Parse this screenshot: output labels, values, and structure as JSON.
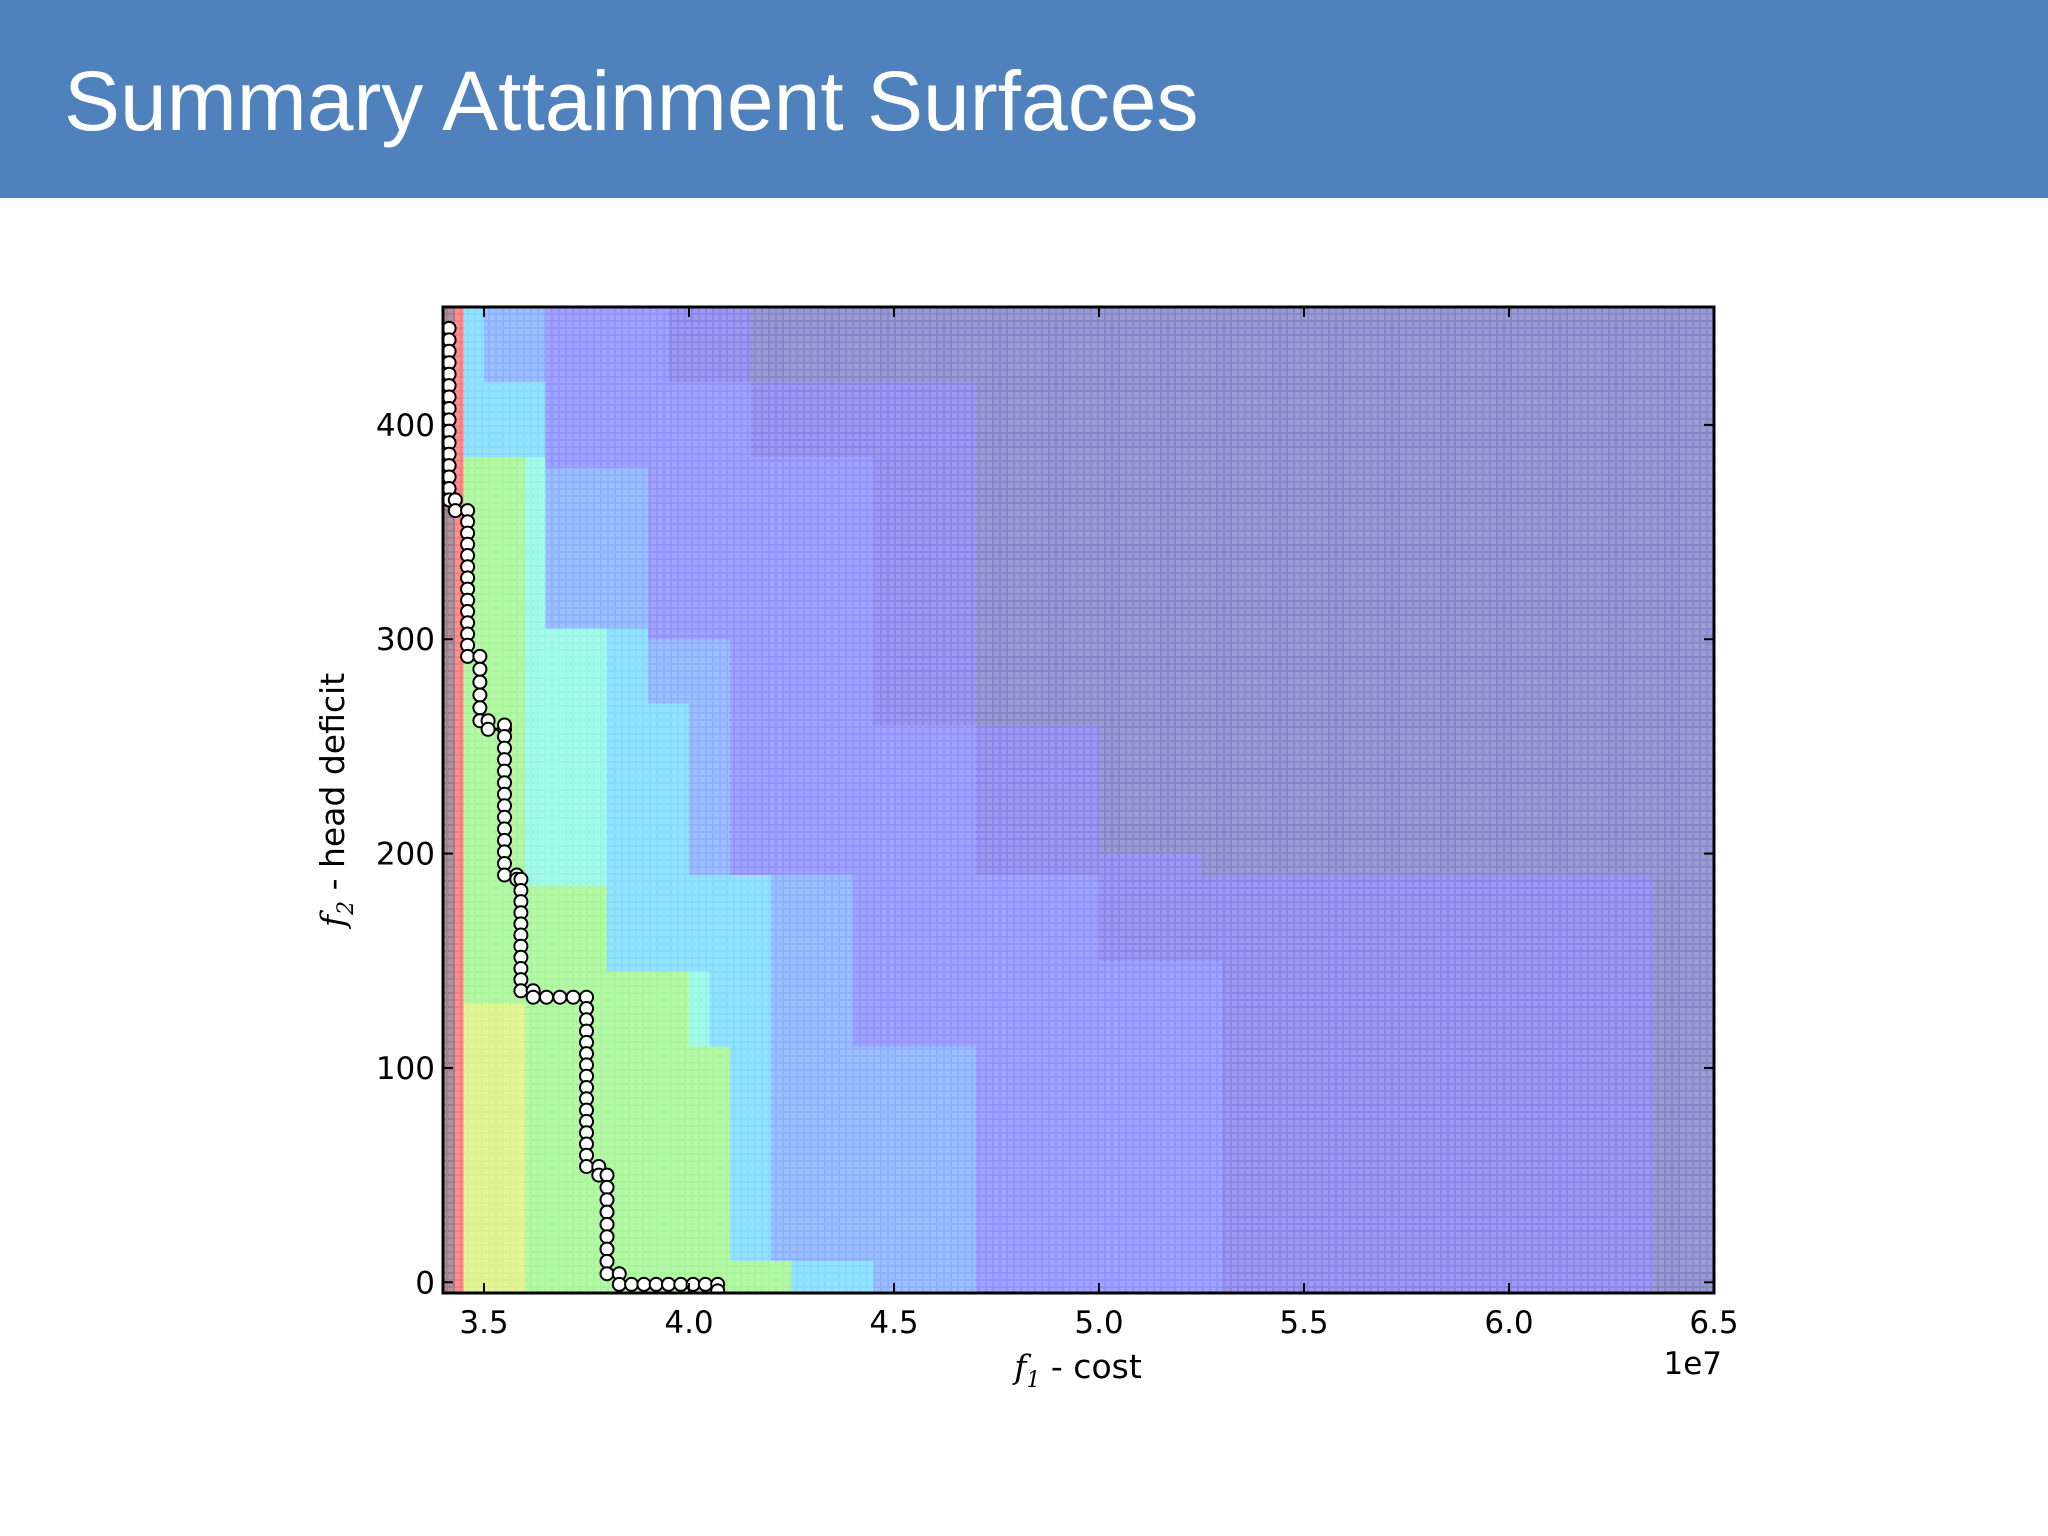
{
  "slide": {
    "title": "Summary Attainment Surfaces"
  },
  "chart_data": {
    "type": "heatmap",
    "title": "",
    "xlabel": {
      "symbol": "f",
      "subscript": "1",
      "text": " - cost"
    },
    "ylabel": {
      "symbol": "f",
      "subscript": "2",
      "text": " - head deficit"
    },
    "x_multiplier": "1e7",
    "xlim": [
      34000000,
      65000000
    ],
    "ylim": [
      -5,
      455
    ],
    "x_ticks": [
      {
        "value": 35000000,
        "label": "3.5"
      },
      {
        "value": 40000000,
        "label": "4.0"
      },
      {
        "value": 45000000,
        "label": "4.5"
      },
      {
        "value": 50000000,
        "label": "5.0"
      },
      {
        "value": 55000000,
        "label": "5.5"
      },
      {
        "value": 60000000,
        "label": "6.0"
      },
      {
        "value": 65000000,
        "label": "6.5"
      }
    ],
    "y_ticks": [
      {
        "value": 0,
        "label": "0"
      },
      {
        "value": 100,
        "label": "100"
      },
      {
        "value": 200,
        "label": "200"
      },
      {
        "value": 300,
        "label": "300"
      },
      {
        "value": 400,
        "label": "400"
      }
    ],
    "colors": {
      "c10": "#ff7b7b",
      "c9": "#ffa67b",
      "c8": "#f8ea86",
      "c7": "#dff28a",
      "c6": "#a8f59a",
      "c5": "#96f7e4",
      "c4": "#84dcff",
      "c3": "#8cb2ff",
      "c2": "#9193ff",
      "c1": "#8a86ec",
      "c0": "#8788c9",
      "edge": "#8e7f92",
      "frame": "#000000",
      "marker_fill": "#ffffff",
      "marker_edge": "#000000",
      "grid_dot": "#ffffff"
    },
    "attainment_regions": [
      {
        "level": "c10",
        "xmax": 34500000,
        "ymin": -5,
        "ymax": 455
      },
      {
        "level": "c9",
        "xmax": 34500000,
        "ymin": -5,
        "ymax": 380
      },
      {
        "level": "c8",
        "xmax": 34500000,
        "ymin": -5,
        "ymax": 130
      },
      {
        "level": "c7",
        "xmax": 36000000,
        "ymin": -5,
        "ymax": 130
      },
      {
        "level": "c6",
        "xmax": 36000000,
        "ymin": -5,
        "ymax": 385
      },
      {
        "level": "c6",
        "xmax": 38000000,
        "ymin": -5,
        "ymax": 185
      },
      {
        "level": "c6",
        "xmax": 40000000,
        "ymin": -5,
        "ymax": 145
      },
      {
        "level": "c6",
        "xmax": 41000000,
        "ymin": -5,
        "ymax": 110
      },
      {
        "level": "c6",
        "xmax": 42500000,
        "ymin": -5,
        "ymax": 10
      },
      {
        "level": "c5",
        "xmax": 36500000,
        "ymin": -5,
        "ymax": 385
      },
      {
        "level": "c5",
        "xmax": 38000000,
        "ymin": -5,
        "ymax": 305
      },
      {
        "level": "c5",
        "xmax": 40500000,
        "ymin": -5,
        "ymax": 145
      },
      {
        "level": "c5",
        "xmax": 42500000,
        "ymin": -5,
        "ymax": 10
      },
      {
        "level": "c4",
        "xmax": 35000000,
        "ymin": -5,
        "ymax": 455
      },
      {
        "level": "c4",
        "xmax": 36500000,
        "ymin": -5,
        "ymax": 420
      },
      {
        "level": "c4",
        "xmax": 39000000,
        "ymin": -5,
        "ymax": 305
      },
      {
        "level": "c4",
        "xmax": 40000000,
        "ymin": -5,
        "ymax": 270
      },
      {
        "level": "c4",
        "xmax": 42000000,
        "ymin": -5,
        "ymax": 190
      },
      {
        "level": "c4",
        "xmax": 44500000,
        "ymin": -5,
        "ymax": 10
      },
      {
        "level": "c3",
        "xmax": 36500000,
        "ymin": -5,
        "ymax": 455
      },
      {
        "level": "c3",
        "xmax": 39000000,
        "ymin": -5,
        "ymax": 380
      },
      {
        "level": "c3",
        "xmax": 41000000,
        "ymin": -5,
        "ymax": 300
      },
      {
        "level": "c3",
        "xmax": 44000000,
        "ymin": -5,
        "ymax": 190
      },
      {
        "level": "c3",
        "xmax": 47000000,
        "ymin": -5,
        "ymax": 110
      },
      {
        "level": "c2",
        "xmax": 39500000,
        "ymin": -5,
        "ymax": 455
      },
      {
        "level": "c2",
        "xmax": 41500000,
        "ymin": -5,
        "ymax": 420
      },
      {
        "level": "c2",
        "xmax": 44500000,
        "ymin": -5,
        "ymax": 385
      },
      {
        "level": "c2",
        "xmax": 47000000,
        "ymin": -5,
        "ymax": 260
      },
      {
        "level": "c2",
        "xmax": 50000000,
        "ymin": -5,
        "ymax": 190
      },
      {
        "level": "c2",
        "xmax": 53000000,
        "ymin": -5,
        "ymax": 150
      },
      {
        "level": "c1",
        "xmax": 41500000,
        "ymin": -5,
        "ymax": 455
      },
      {
        "level": "c1",
        "xmax": 47000000,
        "ymin": -5,
        "ymax": 420
      },
      {
        "level": "c1",
        "xmax": 50000000,
        "ymin": -5,
        "ymax": 260
      },
      {
        "level": "c1",
        "xmax": 52500000,
        "ymin": -5,
        "ymax": 200
      },
      {
        "level": "c1",
        "xmax": 63500000,
        "ymin": -5,
        "ymax": 190
      }
    ],
    "series": [
      {
        "type": "step",
        "points": [
          [
            34150000,
            445
          ],
          [
            34150000,
            365
          ],
          [
            34300000,
            365
          ],
          [
            34300000,
            360
          ],
          [
            34600000,
            360
          ],
          [
            34600000,
            292
          ],
          [
            34900000,
            292
          ],
          [
            34900000,
            262
          ],
          [
            35100000,
            262
          ],
          [
            35100000,
            258
          ],
          [
            35500000,
            258
          ],
          [
            35500000,
            260
          ],
          [
            35500000,
            190
          ],
          [
            35800000,
            190
          ],
          [
            35800000,
            188
          ],
          [
            35900000,
            188
          ],
          [
            35900000,
            136
          ],
          [
            36200000,
            136
          ],
          [
            36200000,
            133
          ],
          [
            37500000,
            133
          ],
          [
            37500000,
            54
          ],
          [
            37800000,
            54
          ],
          [
            37800000,
            50
          ],
          [
            38000000,
            50
          ],
          [
            38000000,
            4
          ],
          [
            38300000,
            4
          ],
          [
            38300000,
            -1
          ],
          [
            40700000,
            -1
          ],
          [
            40700000,
            -4
          ]
        ]
      }
    ]
  }
}
